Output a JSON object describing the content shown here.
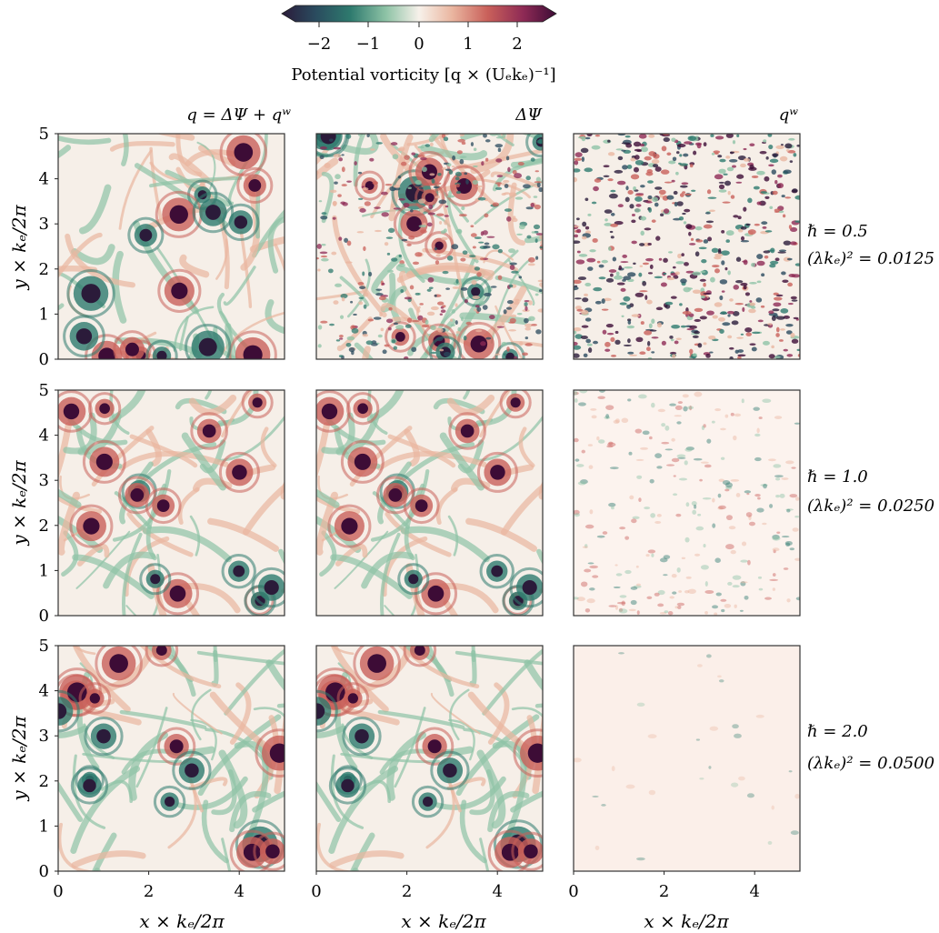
{
  "colorbar": {
    "ticks": [
      "−2",
      "−1",
      "0",
      "1",
      "2"
    ],
    "label": "Potential vorticity [q × (Uₑkₑ)⁻¹]",
    "colors": [
      "#2b1b3a",
      "#2a4a5e",
      "#2e7a6e",
      "#8ec3a6",
      "#f7f1ea",
      "#eab6a0",
      "#c9605a",
      "#8e2a55",
      "#3d0c36"
    ]
  },
  "columns": [
    {
      "title": "q = ΔΨ + qʷ"
    },
    {
      "title": "ΔΨ"
    },
    {
      "title": "qʷ"
    }
  ],
  "rows": [
    {
      "hbar": "ℏ = 0.5",
      "lambda": "(λkₑ)² = 0.0125"
    },
    {
      "hbar": "ℏ = 1.0",
      "lambda": "(λkₑ)² = 0.0250"
    },
    {
      "hbar": "ℏ = 2.0",
      "lambda": "(λkₑ)² = 0.0500"
    }
  ],
  "axes": {
    "ylabel": "y × kₑ/2π",
    "xlabel": "x × kₑ/2π",
    "yticks": [
      "0",
      "1",
      "2",
      "3",
      "4",
      "5"
    ],
    "xticks": [
      "0",
      "2",
      "4"
    ]
  }
}
